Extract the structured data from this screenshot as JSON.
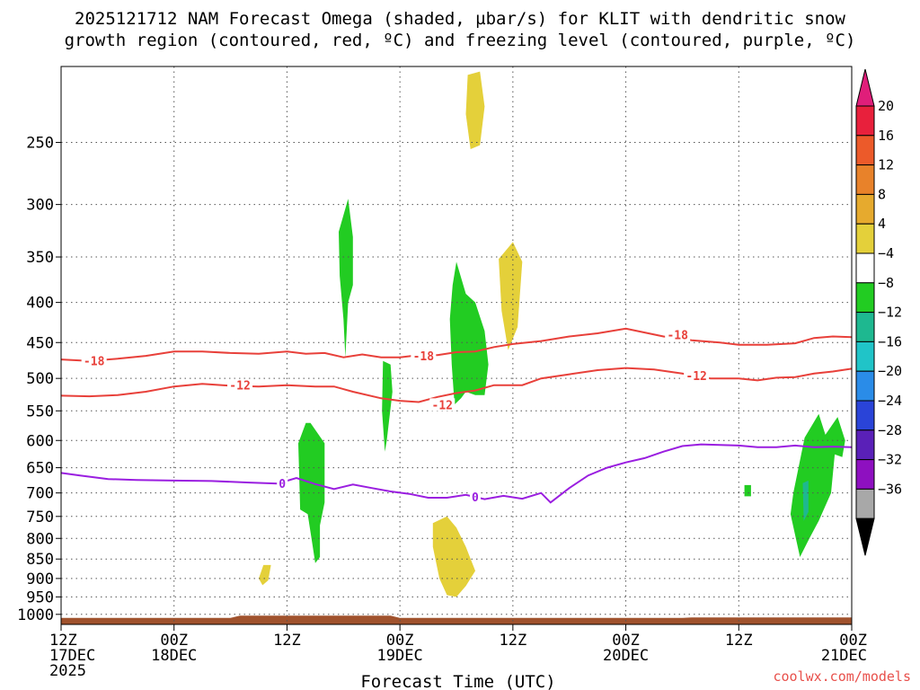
{
  "chart_data": {
    "type": "time-height cross section",
    "title": [
      "2025121712 NAM Forecast Omega (shaded, µbar/s) for KLIT with dendritic snow",
      "growth region (contoured, red, ºC) and freezing level (contoured, purple, ºC)"
    ],
    "xlabel": "Forecast Time (UTC)",
    "x_ticks": [
      {
        "hour": 0,
        "line1": "12Z",
        "line2": "17DEC",
        "line3": "2025"
      },
      {
        "hour": 12,
        "line1": "00Z",
        "line2": "18DEC",
        "line3": ""
      },
      {
        "hour": 24,
        "line1": "12Z",
        "line2": "",
        "line3": ""
      },
      {
        "hour": 36,
        "line1": "00Z",
        "line2": "19DEC",
        "line3": ""
      },
      {
        "hour": 48,
        "line1": "12Z",
        "line2": "",
        "line3": ""
      },
      {
        "hour": 60,
        "line1": "00Z",
        "line2": "20DEC",
        "line3": ""
      },
      {
        "hour": 72,
        "line1": "12Z",
        "line2": "",
        "line3": ""
      },
      {
        "hour": 84,
        "line1": "00Z",
        "line2": "21DEC",
        "line3": ""
      }
    ],
    "xlim_hours": [
      0,
      84
    ],
    "y_ticks_hpa": [
      250,
      300,
      350,
      400,
      450,
      500,
      550,
      600,
      650,
      700,
      750,
      800,
      850,
      900,
      950,
      1000
    ],
    "ylim_hpa": [
      200,
      1030
    ],
    "y_scale": "log (pressure), inverted",
    "grid": "dotted",
    "colorbar": {
      "labels": [
        "20",
        "16",
        "12",
        "8",
        "4",
        "−4",
        "−8",
        "−12",
        "−16",
        "−20",
        "−24",
        "−28",
        "−32",
        "−36"
      ],
      "colors": [
        "#e8203c",
        "#ec5a2a",
        "#e8822a",
        "#e6aa2e",
        "#e4d03a",
        "#ffffff",
        "#22cc22",
        "#1eb890",
        "#20c4c8",
        "#2a8ce8",
        "#2a44d8",
        "#5a20b8",
        "#8e10c0",
        "#a8a8a8"
      ],
      "top_triangle": "#e01e7a",
      "bottom_triangle": "#000000"
    },
    "contours": [
      {
        "label": "-18",
        "color": "#e8403a",
        "points": [
          [
            0,
            473
          ],
          [
            3,
            475
          ],
          [
            6,
            472
          ],
          [
            9,
            468
          ],
          [
            12,
            462
          ],
          [
            15,
            462
          ],
          [
            18,
            464
          ],
          [
            21,
            465
          ],
          [
            24,
            462
          ],
          [
            26,
            465
          ],
          [
            28,
            464
          ],
          [
            30,
            470
          ],
          [
            32,
            466
          ],
          [
            34,
            470
          ],
          [
            36,
            470
          ],
          [
            38,
            467
          ],
          [
            40,
            467
          ],
          [
            42,
            463
          ],
          [
            44,
            462
          ],
          [
            46,
            456
          ],
          [
            48,
            452
          ],
          [
            51,
            448
          ],
          [
            54,
            442
          ],
          [
            57,
            438
          ],
          [
            60,
            432
          ],
          [
            62,
            437
          ],
          [
            64,
            442
          ],
          [
            67,
            447
          ],
          [
            70,
            450
          ],
          [
            72,
            453
          ],
          [
            75,
            453
          ],
          [
            78,
            451
          ],
          [
            80,
            444
          ],
          [
            82,
            442
          ],
          [
            84,
            443
          ]
        ],
        "labels_at": [
          [
            3.5,
            475
          ],
          [
            38.5,
            468
          ],
          [
            65.5,
            440
          ]
        ]
      },
      {
        "label": "-12",
        "color": "#e8403a",
        "points": [
          [
            0,
            526
          ],
          [
            3,
            527
          ],
          [
            6,
            525
          ],
          [
            9,
            520
          ],
          [
            12,
            512
          ],
          [
            15,
            508
          ],
          [
            18,
            511
          ],
          [
            21,
            512
          ],
          [
            24,
            510
          ],
          [
            27,
            512
          ],
          [
            29,
            512
          ],
          [
            31,
            520
          ],
          [
            34,
            530
          ],
          [
            36,
            534
          ],
          [
            38,
            536
          ],
          [
            40,
            528
          ],
          [
            42,
            522
          ],
          [
            44,
            518
          ],
          [
            46,
            510
          ],
          [
            49,
            510
          ],
          [
            51,
            500
          ],
          [
            54,
            494
          ],
          [
            57,
            488
          ],
          [
            60,
            485
          ],
          [
            63,
            487
          ],
          [
            66,
            493
          ],
          [
            69,
            500
          ],
          [
            72,
            500
          ],
          [
            74,
            503
          ],
          [
            76,
            499
          ],
          [
            78,
            498
          ],
          [
            80,
            493
          ],
          [
            82,
            490
          ],
          [
            84,
            486
          ]
        ],
        "labels_at": [
          [
            19,
            510
          ],
          [
            40.5,
            540
          ],
          [
            67.5,
            496
          ]
        ]
      },
      {
        "label": "0",
        "color": "#9a1ee0",
        "points": [
          [
            0,
            660
          ],
          [
            2,
            665
          ],
          [
            5,
            672
          ],
          [
            8,
            674
          ],
          [
            12,
            675
          ],
          [
            16,
            676
          ],
          [
            20,
            679
          ],
          [
            23,
            681
          ],
          [
            25,
            670
          ],
          [
            27,
            682
          ],
          [
            29,
            692
          ],
          [
            31,
            683
          ],
          [
            33,
            690
          ],
          [
            35,
            697
          ],
          [
            37,
            702
          ],
          [
            39,
            710
          ],
          [
            41,
            710
          ],
          [
            43,
            704
          ],
          [
            45,
            713
          ],
          [
            47,
            706
          ],
          [
            49,
            712
          ],
          [
            51,
            700
          ],
          [
            52,
            720
          ],
          [
            54,
            690
          ],
          [
            56,
            665
          ],
          [
            58,
            650
          ],
          [
            60,
            640
          ],
          [
            62,
            632
          ],
          [
            64,
            620
          ],
          [
            66,
            610
          ],
          [
            68,
            607
          ],
          [
            70,
            608
          ],
          [
            72,
            609
          ],
          [
            74,
            612
          ],
          [
            76,
            612
          ],
          [
            78,
            609
          ],
          [
            80,
            612
          ],
          [
            82,
            611
          ],
          [
            84,
            612
          ]
        ],
        "labels_at": [
          [
            23.5,
            681
          ],
          [
            44,
            708
          ]
        ]
      }
    ],
    "omega_regions": [
      {
        "category": "4 to 8",
        "color": "#e4d03a",
        "points": [
          [
            43.2,
            205
          ],
          [
            44.5,
            203
          ],
          [
            45,
            225
          ],
          [
            44.5,
            252
          ],
          [
            43.5,
            255
          ],
          [
            43,
            230
          ]
        ]
      },
      {
        "category": "4 to 8",
        "color": "#e4d03a",
        "points": [
          [
            46.5,
            352
          ],
          [
            48,
            335
          ],
          [
            49,
            355
          ],
          [
            48.5,
            430
          ],
          [
            47.5,
            460
          ],
          [
            46.8,
            410
          ]
        ]
      },
      {
        "category": "4 to 8",
        "color": "#e4d03a",
        "points": [
          [
            39.5,
            765
          ],
          [
            41,
            750
          ],
          [
            42,
            775
          ],
          [
            43,
            820
          ],
          [
            44,
            880
          ],
          [
            43,
            920
          ],
          [
            42,
            950
          ],
          [
            41,
            945
          ],
          [
            40.2,
            900
          ],
          [
            39.5,
            820
          ]
        ]
      },
      {
        "category": "4 to 8",
        "color": "#e4d03a",
        "points": [
          [
            21,
            900
          ],
          [
            21.5,
            865
          ],
          [
            22.3,
            865
          ],
          [
            22,
            905
          ],
          [
            21.4,
            918
          ]
        ]
      },
      {
        "category": "-4 to -8",
        "color": "#22cc22",
        "points": [
          [
            29.5,
            325
          ],
          [
            30.5,
            295
          ],
          [
            31,
            330
          ],
          [
            31,
            380
          ],
          [
            30.5,
            400
          ],
          [
            30.2,
            470
          ],
          [
            30,
            420
          ],
          [
            29.6,
            370
          ]
        ]
      },
      {
        "category": "-4 to -8",
        "color": "#22cc22",
        "points": [
          [
            41.6,
            380
          ],
          [
            42,
            355
          ],
          [
            43,
            390
          ],
          [
            44,
            400
          ],
          [
            45,
            435
          ],
          [
            45.4,
            480
          ],
          [
            45,
            525
          ],
          [
            44,
            525
          ],
          [
            43,
            520
          ],
          [
            42.5,
            530
          ],
          [
            41.8,
            540
          ],
          [
            41.5,
            480
          ],
          [
            41.3,
            420
          ]
        ]
      },
      {
        "category": "-4 to -8",
        "color": "#22cc22",
        "points": [
          [
            34.2,
            475
          ],
          [
            35,
            480
          ],
          [
            35.2,
            520
          ],
          [
            34.6,
            600
          ],
          [
            34.4,
            620
          ],
          [
            34.1,
            550
          ]
        ]
      },
      {
        "category": "-4 to -8",
        "color": "#22cc22",
        "points": [
          [
            25.2,
            605
          ],
          [
            26,
            570
          ],
          [
            26.5,
            570
          ],
          [
            28,
            605
          ],
          [
            28,
            720
          ],
          [
            27.5,
            770
          ],
          [
            27.5,
            845
          ],
          [
            27,
            860
          ],
          [
            26.6,
            800
          ],
          [
            26.2,
            745
          ],
          [
            25.4,
            735
          ]
        ]
      },
      {
        "category": "-4 to -8",
        "color": "#22cc22",
        "points": [
          [
            79,
            595
          ],
          [
            80.5,
            555
          ],
          [
            81.2,
            590
          ],
          [
            82.5,
            560
          ],
          [
            83.3,
            600
          ],
          [
            83,
            630
          ],
          [
            82.2,
            625
          ],
          [
            81.8,
            700
          ],
          [
            80.5,
            760
          ],
          [
            79.5,
            800
          ],
          [
            78.5,
            845
          ],
          [
            77.5,
            745
          ],
          [
            77.8,
            700
          ]
        ]
      },
      {
        "category": "-4 to -8",
        "color": "#22cc22",
        "points": [
          [
            72.6,
            684
          ],
          [
            73.3,
            684
          ],
          [
            73.3,
            707
          ],
          [
            72.6,
            707
          ]
        ]
      },
      {
        "category": "-8 to -12",
        "color": "#1eb890",
        "points": [
          [
            78.8,
            680
          ],
          [
            79.4,
            675
          ],
          [
            79.4,
            740
          ],
          [
            78.9,
            760
          ]
        ]
      }
    ],
    "ground": {
      "color": "#a0522d",
      "top_hpa": 1008
    }
  },
  "credit": "coolwx.com/models"
}
